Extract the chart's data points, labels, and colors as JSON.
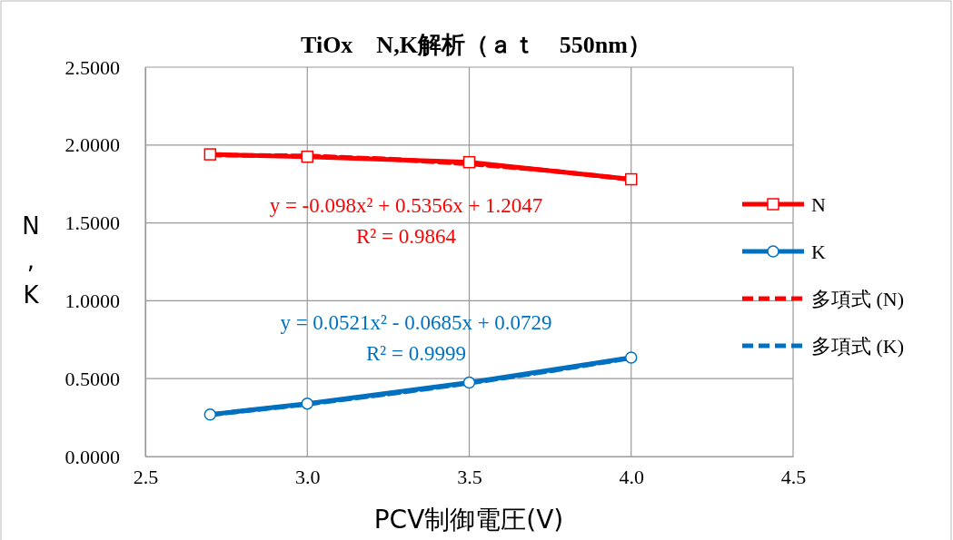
{
  "chart_data": {
    "type": "line",
    "title": "TiOx　N,K解析（ａｔ　550nm）",
    "xlabel": "PCV制御電圧(V)",
    "ylabel": "N,K",
    "xlim": [
      2.5,
      4.5
    ],
    "xticks": [
      {
        "value": 2.5,
        "label": "2.5"
      },
      {
        "value": 3,
        "label": "3.0"
      },
      {
        "value": 3.5,
        "label": "3.5"
      },
      {
        "value": 4,
        "label": "4.0"
      },
      {
        "value": 4.5,
        "label": "4.5"
      }
    ],
    "ylim": [
      0,
      2.5
    ],
    "yticks": [
      {
        "value": 0,
        "label": "0.0000"
      },
      {
        "value": 0.5,
        "label": "0.5000"
      },
      {
        "value": 1,
        "label": "1.0000"
      },
      {
        "value": 1.5,
        "label": "1.5000"
      },
      {
        "value": 2,
        "label": "2.0000"
      },
      {
        "value": 2.5,
        "label": "2.5000"
      }
    ],
    "grid": true,
    "legend": "right",
    "x": [
      2.7,
      3.0,
      3.5,
      4.0
    ],
    "series": [
      {
        "name": "N",
        "color": "#ff0000",
        "values": [
          1.94,
          1.925,
          1.89,
          1.78
        ],
        "marker": "square",
        "line_style": "solid"
      },
      {
        "name": "K",
        "color": "#0070c0",
        "values": [
          0.27,
          0.34,
          0.475,
          0.635
        ],
        "marker": "circle",
        "line_style": "solid"
      },
      {
        "name": "多項式 (N)",
        "color": "#ff0000",
        "x": [
          2.7,
          3.0,
          3.25,
          3.5,
          3.75,
          4.0
        ],
        "values": [
          1.936,
          1.93,
          1.91,
          1.879,
          1.835,
          1.779
        ],
        "marker": "none",
        "line_style": "dashed"
      },
      {
        "name": "多項式 (K)",
        "color": "#0070c0",
        "x": [
          2.7,
          3.0,
          3.25,
          3.5,
          3.75,
          4.0
        ],
        "values": [
          0.268,
          0.336,
          0.401,
          0.471,
          0.549,
          0.633
        ],
        "marker": "none",
        "line_style": "dashed"
      }
    ],
    "annotations": [
      "y = -0.098x² + 0.5356x + 1.2047",
      "R² = 0.9864",
      "y = 0.0521x² - 0.0685x + 0.0729",
      "R² = 0.9999"
    ]
  }
}
